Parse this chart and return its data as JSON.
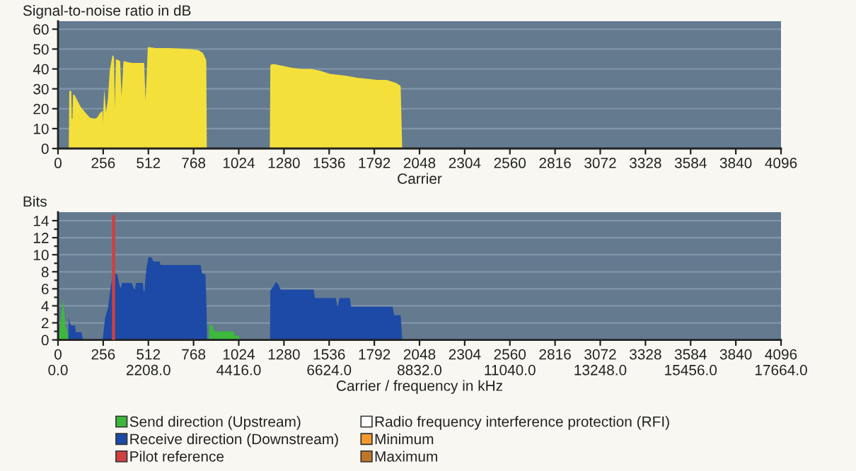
{
  "chart_data": [
    {
      "type": "area",
      "ylabel": "Signal-to-noise ratio in dB",
      "xlabel": "Carrier",
      "x": [
        0,
        61,
        64,
        75,
        78,
        82,
        85,
        93,
        128,
        155,
        181,
        208,
        221,
        240,
        253,
        254,
        262,
        272,
        283,
        293,
        309,
        317,
        322,
        328,
        352,
        360,
        371,
        392,
        421,
        488,
        496,
        509,
        555,
        635,
        741,
        795,
        821,
        837,
        840,
        843,
        1200,
        1203,
        1221,
        1275,
        1328,
        1381,
        1435,
        1488,
        1541,
        1595,
        1635,
        1701,
        1755,
        1808,
        1861,
        1915,
        1941,
        1950,
        4096
      ],
      "series": [
        {
          "color": "#f4e03a",
          "values": [
            0,
            0,
            29,
            29,
            15,
            15,
            27,
            27,
            21,
            18,
            15.5,
            15,
            15.5,
            18,
            19,
            13,
            30,
            18,
            25,
            39,
            47,
            46,
            20,
            45,
            44,
            26,
            44,
            43.5,
            43,
            43,
            24,
            51,
            50.5,
            50.5,
            50,
            49.5,
            48,
            45,
            44,
            0,
            0,
            42,
            42.5,
            41.5,
            40.5,
            40,
            40,
            39,
            37.5,
            37,
            36.5,
            35.5,
            35,
            34.5,
            34.5,
            33,
            31.5,
            0,
            0
          ]
        }
      ],
      "xlim": [
        0,
        4096
      ],
      "xticks": [
        0,
        256,
        512,
        768,
        1024,
        1280,
        1536,
        1792,
        2048,
        2304,
        2560,
        2816,
        3072,
        3328,
        3584,
        3840,
        4096
      ],
      "ylim": [
        0,
        64
      ],
      "yticks": [
        0,
        10,
        20,
        30,
        40,
        50,
        60
      ],
      "grid": "y"
    },
    {
      "type": "area",
      "ylabel": "Bits",
      "xlabel": "Carrier / frequency in kHz",
      "series": [
        {
          "name": "Send direction (Upstream)",
          "color": "#3cb83c",
          "x": [
            5,
            11,
            21,
            29,
            35,
            43,
            53,
            61,
            856,
            858,
            872,
            880,
            888,
            995,
            1000,
            1025,
            1030
          ],
          "values": [
            0,
            1.5,
            3.5,
            4.8,
            3.5,
            1.5,
            1,
            0,
            0,
            1.8,
            1.8,
            1.4,
            1,
            1,
            0.5,
            0.5,
            0
          ]
        },
        {
          "name": "Receive direction (Downstream)",
          "color": "#1c4aa6",
          "x": [
            58,
            61,
            66,
            75,
            96,
            101,
            133,
            141,
            253,
            267,
            283,
            296,
            309,
            320,
            336,
            347,
            355,
            363,
            416,
            427,
            435,
            443,
            480,
            488,
            501,
            512,
            528,
            541,
            576,
            581,
            808,
            816,
            835,
            840,
            845,
            1201,
            1203,
            1221,
            1235,
            1248,
            1261,
            1448,
            1456,
            1573,
            1584,
            1595,
            1653,
            1661,
            1896,
            1904,
            1941,
            1950
          ],
          "values": [
            0,
            2.7,
            2,
            1.7,
            1.7,
            0.9,
            0.9,
            0,
            0,
            2.6,
            3.7,
            5.9,
            7.5,
            7.8,
            7.7,
            6.5,
            6,
            6.7,
            6.7,
            6.2,
            5.9,
            6.7,
            6.7,
            5.5,
            8.4,
            9.7,
            9.7,
            9.2,
            9.2,
            8.8,
            8.8,
            7.8,
            7.7,
            5,
            0,
            0,
            5.8,
            6.3,
            6.8,
            6.5,
            5.9,
            5.9,
            4.9,
            4.9,
            3.9,
            4.9,
            4.9,
            3.9,
            3.9,
            2.9,
            2.9,
            0
          ]
        },
        {
          "name": "Pilot reference",
          "type": "line",
          "color": "#d04040",
          "x": [
            315,
            315
          ],
          "values": [
            0,
            14.5
          ]
        },
        {
          "name": "Radio frequency interference protection (RFI)",
          "color": "#ffffff"
        },
        {
          "name": "Minimum",
          "color": "#f39a2b"
        },
        {
          "name": "Maximum",
          "color": "#c0762a"
        }
      ],
      "xlim": [
        0,
        4096
      ],
      "xticks": [
        0,
        256,
        512,
        768,
        1024,
        1280,
        1536,
        1792,
        2048,
        2304,
        2560,
        2816,
        3072,
        3328,
        3584,
        3840,
        4096
      ],
      "x2lim": [
        0,
        17664
      ],
      "x2ticks": [
        {
          "value": 0,
          "label": "0.0"
        },
        {
          "value": 2208,
          "label": "2208.0"
        },
        {
          "value": 4416,
          "label": "4416.0"
        },
        {
          "value": 6624,
          "label": "6624.0"
        },
        {
          "value": 8832,
          "label": "8832.0"
        },
        {
          "value": 11040,
          "label": "11040.0"
        },
        {
          "value": 13248,
          "label": "13248.0"
        },
        {
          "value": 15456,
          "label": "15456.0"
        },
        {
          "value": 17664,
          "label": "17664.0"
        }
      ],
      "ylim": [
        0,
        15
      ],
      "yticks": [
        0,
        {
          "value": 1,
          "label": null
        },
        2,
        {
          "value": 3,
          "label": null
        },
        4,
        {
          "value": 5,
          "label": null
        },
        6,
        {
          "value": 7,
          "label": null
        },
        8,
        {
          "value": 9,
          "label": null
        },
        10,
        {
          "value": 11,
          "label": null
        },
        12,
        {
          "value": 13,
          "label": null
        },
        14
      ],
      "grid": "y",
      "legend": "bottom"
    }
  ]
}
